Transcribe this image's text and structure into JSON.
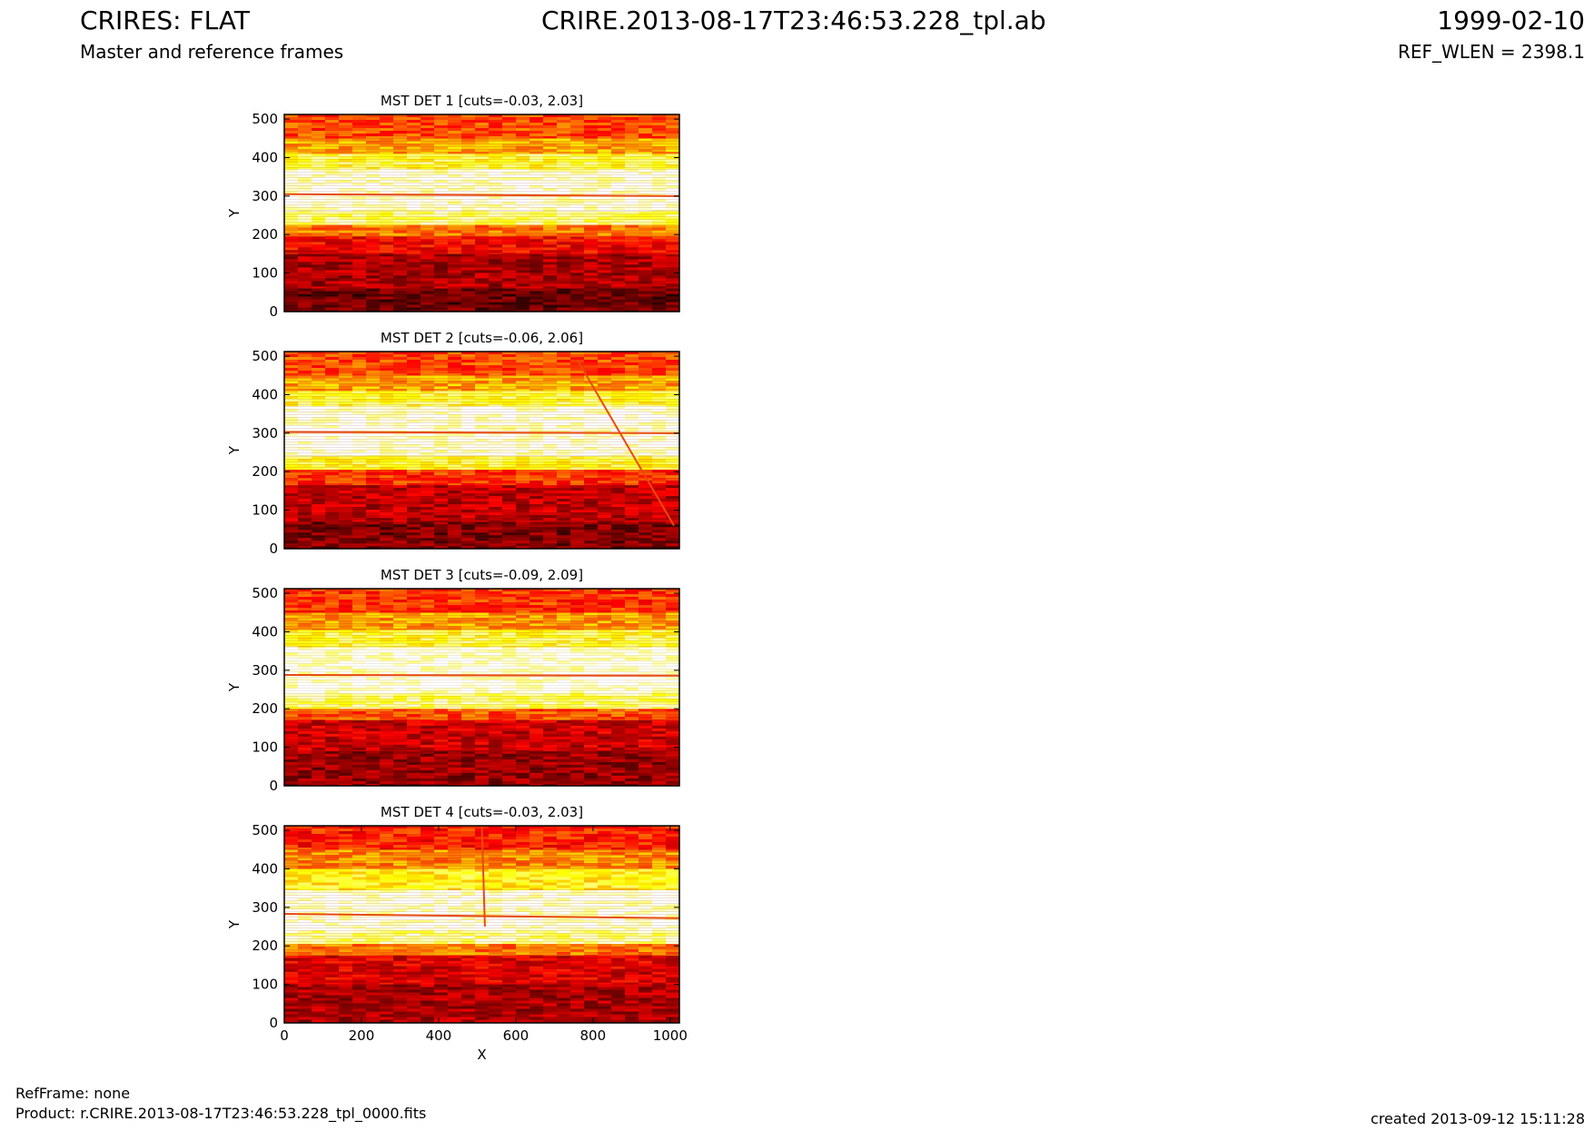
{
  "header": {
    "title_left": "CRIRES: FLAT",
    "subtitle": "Master and reference frames",
    "title_center": "CRIRE.2013-08-17T23:46:53.228_tpl.ab",
    "date": "1999-02-10",
    "ref_wlen": "REF_WLEN = 2398.1"
  },
  "footer": {
    "ref_frame": "RefFrame: none",
    "product": "Product: r.CRIRE.2013-08-17T23:46:53.228_tpl_0000.fits",
    "created": "created 2013-09-12 15:11:28"
  },
  "colors": {
    "colormap": "hot",
    "dark": "#7a0000",
    "mid": "#e03000",
    "bright": "#ffff66",
    "white": "#ffffff"
  },
  "chart_data": [
    {
      "type": "heatmap",
      "title": "MST DET 1 [cuts=-0.03, 2.03]",
      "ylabel": "Y",
      "xlabel": "",
      "xlim": [
        0,
        1024
      ],
      "ylim": [
        0,
        512
      ],
      "yticks": [
        0,
        100,
        200,
        300,
        400,
        500
      ],
      "xticks": [],
      "cuts": [
        -0.03,
        2.03
      ],
      "bands": [
        {
          "y0": 0,
          "y1": 60,
          "level": 0.15
        },
        {
          "y0": 60,
          "y1": 150,
          "level": 0.25
        },
        {
          "y0": 150,
          "y1": 195,
          "level": 0.38
        },
        {
          "y0": 195,
          "y1": 225,
          "level": 0.55
        },
        {
          "y0": 225,
          "y1": 260,
          "level": 0.85
        },
        {
          "y0": 260,
          "y1": 370,
          "level": 0.97
        },
        {
          "y0": 370,
          "y1": 410,
          "level": 0.8
        },
        {
          "y0": 410,
          "y1": 450,
          "level": 0.62
        },
        {
          "y0": 450,
          "y1": 512,
          "level": 0.48
        }
      ],
      "lines": [
        {
          "x0": 0,
          "y0": 305,
          "x1": 1024,
          "y1": 300
        }
      ]
    },
    {
      "type": "heatmap",
      "title": "MST DET 2 [cuts=-0.06, 2.06]",
      "ylabel": "Y",
      "xlabel": "",
      "xlim": [
        0,
        1024
      ],
      "ylim": [
        0,
        512
      ],
      "yticks": [
        0,
        100,
        200,
        300,
        400,
        500
      ],
      "xticks": [],
      "cuts": [
        -0.06,
        2.06
      ],
      "bands": [
        {
          "y0": 0,
          "y1": 70,
          "level": 0.18
        },
        {
          "y0": 70,
          "y1": 165,
          "level": 0.28
        },
        {
          "y0": 165,
          "y1": 205,
          "level": 0.45
        },
        {
          "y0": 205,
          "y1": 240,
          "level": 0.78
        },
        {
          "y0": 240,
          "y1": 370,
          "level": 0.97
        },
        {
          "y0": 370,
          "y1": 410,
          "level": 0.8
        },
        {
          "y0": 410,
          "y1": 450,
          "level": 0.62
        },
        {
          "y0": 450,
          "y1": 512,
          "level": 0.48
        }
      ],
      "lines": [
        {
          "x0": 0,
          "y0": 303,
          "x1": 1024,
          "y1": 300
        },
        {
          "x0": 760,
          "y0": 490,
          "x1": 1010,
          "y1": 60
        }
      ]
    },
    {
      "type": "heatmap",
      "title": "MST DET 3 [cuts=-0.09, 2.09]",
      "ylabel": "Y",
      "xlabel": "",
      "xlim": [
        0,
        1024
      ],
      "ylim": [
        0,
        512
      ],
      "yticks": [
        0,
        100,
        200,
        300,
        400,
        500
      ],
      "xticks": [],
      "cuts": [
        -0.09,
        2.09
      ],
      "bands": [
        {
          "y0": 0,
          "y1": 90,
          "level": 0.22
        },
        {
          "y0": 90,
          "y1": 170,
          "level": 0.3
        },
        {
          "y0": 170,
          "y1": 200,
          "level": 0.5
        },
        {
          "y0": 200,
          "y1": 240,
          "level": 0.85
        },
        {
          "y0": 240,
          "y1": 360,
          "level": 0.97
        },
        {
          "y0": 360,
          "y1": 405,
          "level": 0.8
        },
        {
          "y0": 405,
          "y1": 450,
          "level": 0.6
        },
        {
          "y0": 450,
          "y1": 512,
          "level": 0.45
        }
      ],
      "lines": [
        {
          "x0": 0,
          "y0": 288,
          "x1": 1024,
          "y1": 286
        }
      ]
    },
    {
      "type": "heatmap",
      "title": "MST DET 4 [cuts=-0.03, 2.03]",
      "ylabel": "Y",
      "xlabel": "X",
      "xlim": [
        0,
        1024
      ],
      "ylim": [
        0,
        512
      ],
      "yticks": [
        0,
        100,
        200,
        300,
        400,
        500
      ],
      "xticks": [
        0,
        200,
        400,
        600,
        800,
        1000
      ],
      "cuts": [
        -0.03,
        2.03
      ],
      "bands": [
        {
          "y0": 0,
          "y1": 100,
          "level": 0.25
        },
        {
          "y0": 100,
          "y1": 175,
          "level": 0.33
        },
        {
          "y0": 175,
          "y1": 205,
          "level": 0.55
        },
        {
          "y0": 205,
          "y1": 240,
          "level": 0.88
        },
        {
          "y0": 240,
          "y1": 345,
          "level": 0.97
        },
        {
          "y0": 345,
          "y1": 400,
          "level": 0.75
        },
        {
          "y0": 400,
          "y1": 450,
          "level": 0.58
        },
        {
          "y0": 450,
          "y1": 512,
          "level": 0.42
        }
      ],
      "lines": [
        {
          "x0": 0,
          "y0": 283,
          "x1": 1024,
          "y1": 272
        },
        {
          "x0": 512,
          "y0": 512,
          "x1": 520,
          "y1": 250
        }
      ]
    }
  ]
}
